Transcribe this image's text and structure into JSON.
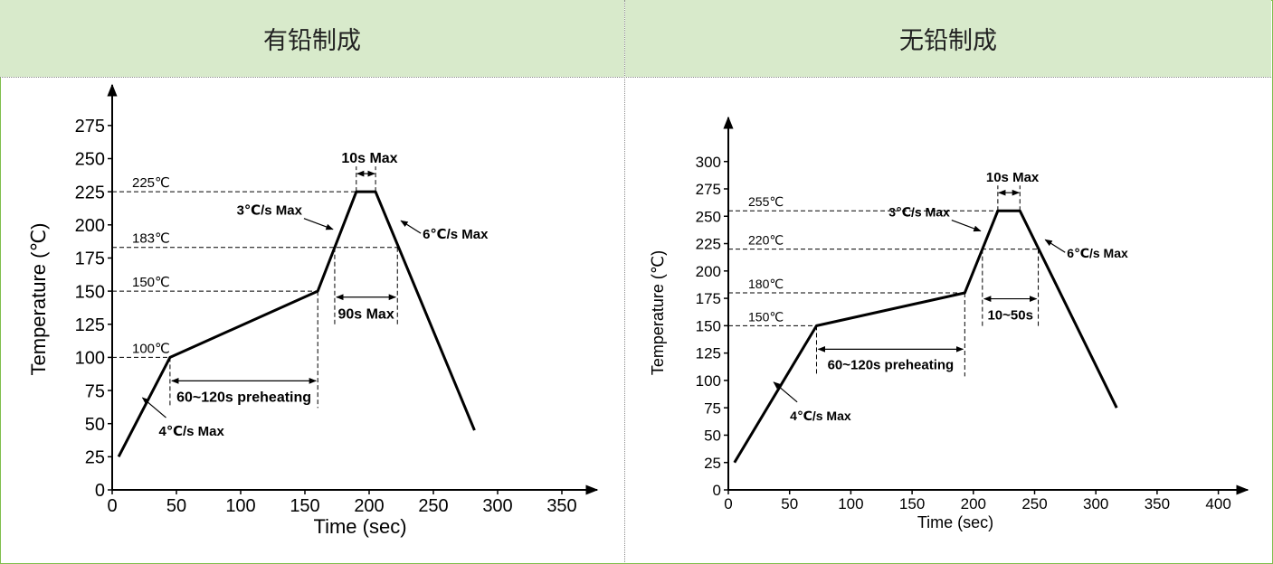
{
  "header": {
    "left_title": "有铅制成",
    "right_title": "无铅制成"
  },
  "colors": {
    "header_bg": "#d8eacb",
    "border": "#7fbf4d",
    "curve": "#000000"
  },
  "chart_data": [
    {
      "type": "line",
      "title": "",
      "xlabel": "Time (sec)",
      "ylabel": "Temperature (℃)",
      "xlim": [
        0,
        370
      ],
      "ylim": [
        0,
        290
      ],
      "xticks": [
        "0",
        "50",
        "100",
        "150",
        "200",
        "250",
        "300",
        "350"
      ],
      "yticks": [
        "0",
        "25",
        "50",
        "75",
        "100",
        "125",
        "150",
        "175",
        "200",
        "225",
        "250",
        "275"
      ],
      "grid": false,
      "series": [
        {
          "name": "",
          "x": [
            5,
            45,
            160,
            190,
            205,
            282
          ],
          "y": [
            25,
            100,
            150,
            225,
            225,
            45
          ]
        }
      ],
      "levels": [
        {
          "label": "225℃",
          "y": 225,
          "x_end": 190
        },
        {
          "label": "183℃",
          "y": 183,
          "x_end": 222
        },
        {
          "label": "150℃",
          "y": 150,
          "x_end": 160
        },
        {
          "label": "100℃",
          "y": 100,
          "x_end": 45
        }
      ],
      "annotations": {
        "peak_time": "10s Max",
        "rise_rate": "3℃/s Max",
        "cool_rate": "6℃/s Max",
        "above_time": "90s Max",
        "preheat": "60~120s preheating",
        "ramp_rate": "4℃/s Max"
      }
    },
    {
      "type": "line",
      "title": "",
      "xlabel": "Time (sec)",
      "ylabel": "Temperature (℃)",
      "xlim": [
        0,
        430
      ],
      "ylim": [
        0,
        320
      ],
      "xticks": [
        "0",
        "50",
        "100",
        "150",
        "200",
        "250",
        "300",
        "350",
        "400"
      ],
      "yticks": [
        "0",
        "25",
        "50",
        "75",
        "100",
        "125",
        "150",
        "175",
        "200",
        "225",
        "250",
        "275",
        "300"
      ],
      "grid": false,
      "series": [
        {
          "name": "",
          "x": [
            5,
            72,
            193,
            220,
            238,
            317
          ],
          "y": [
            25,
            150,
            180,
            255,
            255,
            75
          ]
        }
      ],
      "levels": [
        {
          "label": "255℃",
          "y": 255,
          "x_end": 220
        },
        {
          "label": "220℃",
          "y": 220,
          "x_end": 253
        },
        {
          "label": "180℃",
          "y": 180,
          "x_end": 193
        },
        {
          "label": "150℃",
          "y": 150,
          "x_end": 72
        }
      ],
      "annotations": {
        "peak_time": "10s Max",
        "rise_rate": "3℃/s Max",
        "cool_rate": "6℃/s Max",
        "above_time": "10~50s",
        "preheat": "60~120s preheating",
        "ramp_rate": "4℃/s Max"
      }
    }
  ]
}
